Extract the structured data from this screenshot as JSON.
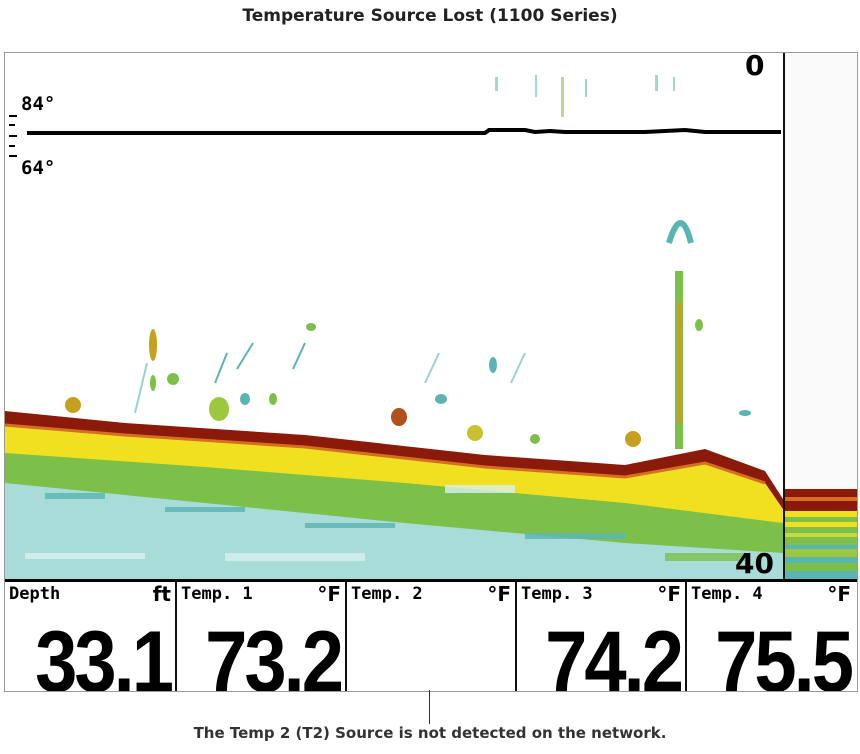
{
  "page_title": "Temperature Source Lost (1100 Series)",
  "callout_text": "The Temp 2 (T2) Source is not detected on the network.",
  "sonar": {
    "depth_top": "0",
    "depth_bottom": "40",
    "temp_graph_high": "84°",
    "temp_graph_low": "64°"
  },
  "colors": {
    "bottom_red": "#8b1a0a",
    "strong_yellow": "#f0e020",
    "medium_green": "#7cc04a",
    "weak_cyan": "#5ab4b4",
    "background": "#ffffff"
  },
  "readouts": [
    {
      "label": "Depth",
      "unit": "ft",
      "value": "33.1"
    },
    {
      "label": "Temp. 1",
      "unit": "°F",
      "value": "73.2"
    },
    {
      "label": "Temp. 2",
      "unit": "°F",
      "value": ""
    },
    {
      "label": "Temp. 3",
      "unit": "°F",
      "value": "74.2"
    },
    {
      "label": "Temp. 4",
      "unit": "°F",
      "value": "75.5"
    }
  ]
}
